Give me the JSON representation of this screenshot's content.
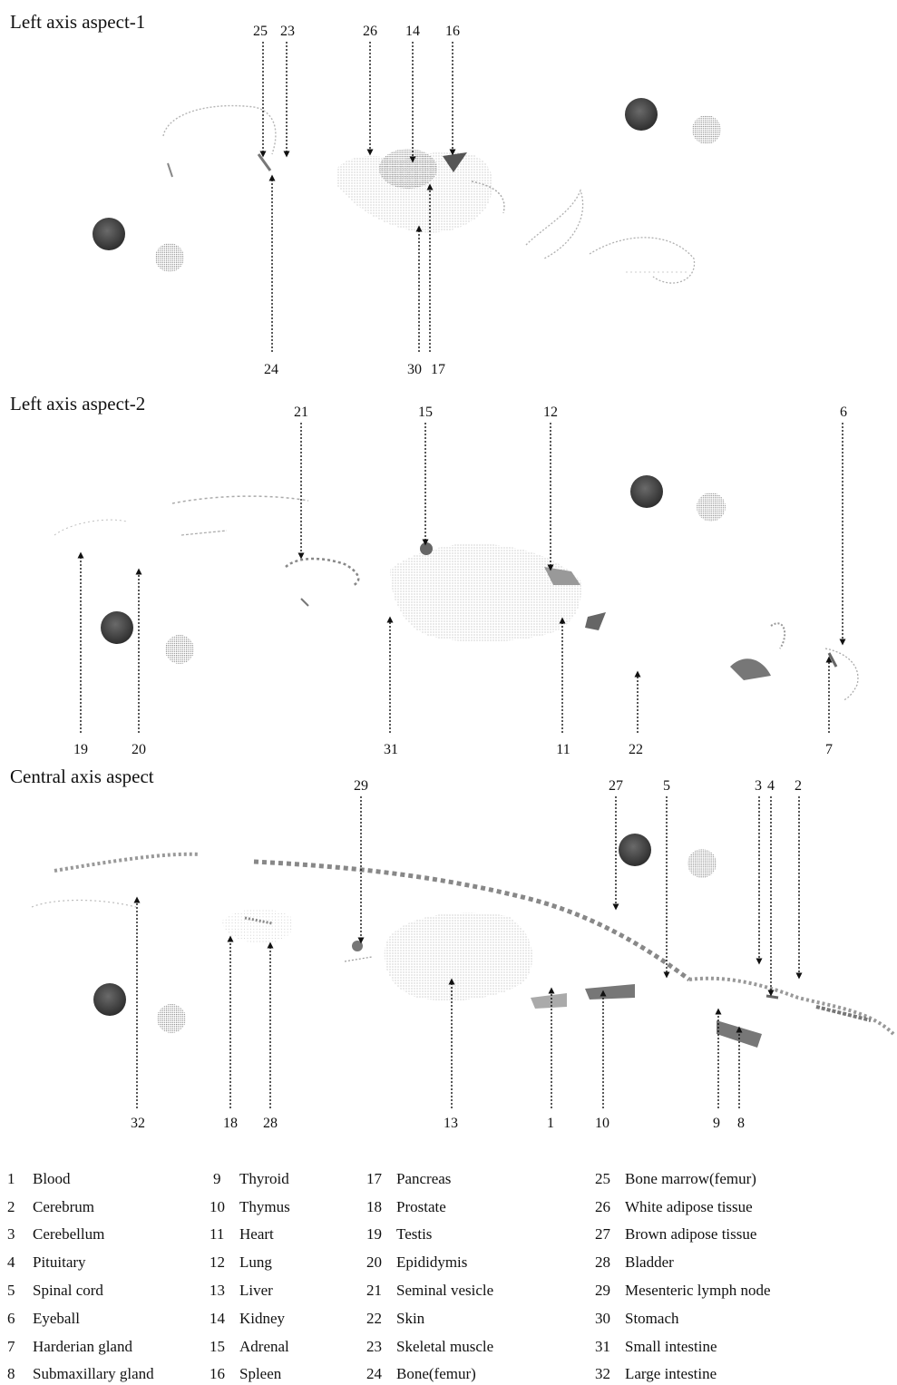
{
  "panels": [
    {
      "title": "Left axis aspect-1",
      "pointers": [
        {
          "label": "25",
          "from": "top"
        },
        {
          "label": "23",
          "from": "top"
        },
        {
          "label": "26",
          "from": "top"
        },
        {
          "label": "14",
          "from": "top"
        },
        {
          "label": "16",
          "from": "top"
        },
        {
          "label": "24",
          "from": "bottom"
        },
        {
          "label": "30",
          "from": "bottom"
        },
        {
          "label": "17",
          "from": "bottom"
        }
      ]
    },
    {
      "title": "Left axis aspect-2",
      "pointers": [
        {
          "label": "21",
          "from": "top"
        },
        {
          "label": "15",
          "from": "top"
        },
        {
          "label": "12",
          "from": "top"
        },
        {
          "label": "6",
          "from": "top"
        },
        {
          "label": "19",
          "from": "bottom"
        },
        {
          "label": "20",
          "from": "bottom"
        },
        {
          "label": "31",
          "from": "bottom"
        },
        {
          "label": "11",
          "from": "bottom"
        },
        {
          "label": "22",
          "from": "bottom"
        },
        {
          "label": "7",
          "from": "bottom"
        }
      ]
    },
    {
      "title": "Central axis aspect",
      "pointers": [
        {
          "label": "29",
          "from": "top"
        },
        {
          "label": "27",
          "from": "top"
        },
        {
          "label": "5",
          "from": "top"
        },
        {
          "label": "3",
          "from": "top"
        },
        {
          "label": "4",
          "from": "top"
        },
        {
          "label": "2",
          "from": "top"
        },
        {
          "label": "32",
          "from": "bottom"
        },
        {
          "label": "18",
          "from": "bottom"
        },
        {
          "label": "28",
          "from": "bottom"
        },
        {
          "label": "13",
          "from": "bottom"
        },
        {
          "label": "1",
          "from": "bottom"
        },
        {
          "label": "10",
          "from": "bottom"
        },
        {
          "label": "9",
          "from": "bottom"
        },
        {
          "label": "8",
          "from": "bottom"
        }
      ]
    }
  ],
  "legend": [
    {
      "num": "1",
      "name": "Blood"
    },
    {
      "num": "2",
      "name": "Cerebrum"
    },
    {
      "num": "3",
      "name": "Cerebellum"
    },
    {
      "num": "4",
      "name": "Pituitary"
    },
    {
      "num": "5",
      "name": "Spinal cord"
    },
    {
      "num": "6",
      "name": "Eyeball"
    },
    {
      "num": "7",
      "name": "Harderian gland"
    },
    {
      "num": "8",
      "name": "Submaxillary gland"
    },
    {
      "num": "9",
      "name": "Thyroid"
    },
    {
      "num": "10",
      "name": "Thymus"
    },
    {
      "num": "11",
      "name": "Heart"
    },
    {
      "num": "12",
      "name": "Lung"
    },
    {
      "num": "13",
      "name": "Liver"
    },
    {
      "num": "14",
      "name": "Kidney"
    },
    {
      "num": "15",
      "name": "Adrenal"
    },
    {
      "num": "16",
      "name": "Spleen"
    },
    {
      "num": "17",
      "name": "Pancreas"
    },
    {
      "num": "18",
      "name": "Prostate"
    },
    {
      "num": "19",
      "name": "Testis"
    },
    {
      "num": "20",
      "name": "Epididymis"
    },
    {
      "num": "21",
      "name": "Seminal vesicle"
    },
    {
      "num": "22",
      "name": "Skin"
    },
    {
      "num": "23",
      "name": "Skeletal muscle"
    },
    {
      "num": "24",
      "name": "Bone(femur)"
    },
    {
      "num": "25",
      "name": "Bone marrow(femur)"
    },
    {
      "num": "26",
      "name": "White adipose tissue"
    },
    {
      "num": "27",
      "name": "Brown adipose tissue"
    },
    {
      "num": "28",
      "name": "Bladder"
    },
    {
      "num": "29",
      "name": "Mesenteric lymph node"
    },
    {
      "num": "30",
      "name": "Stomach"
    },
    {
      "num": "31",
      "name": "Small intestine"
    },
    {
      "num": "32",
      "name": "Large intestine"
    }
  ],
  "colors": {
    "text": "#111111",
    "arrow": "#111111",
    "tissue": "#9a9a9a",
    "tissue_dense": "#6a6a6a",
    "standard_dark": "#3a3a3a",
    "standard_light": "#c9c9c9"
  }
}
